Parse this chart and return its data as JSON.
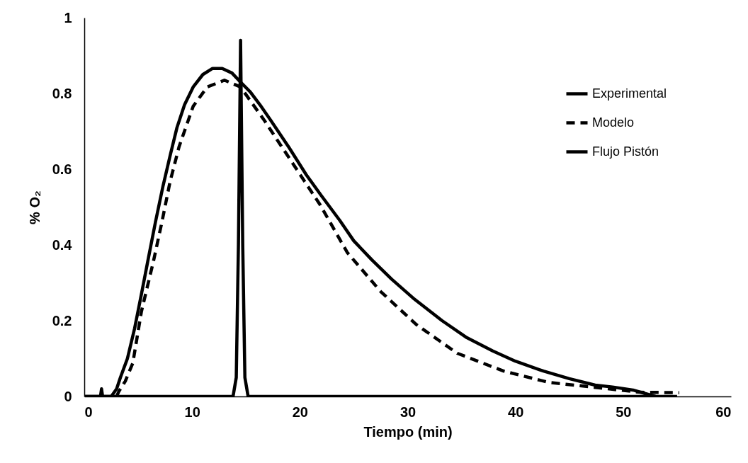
{
  "chart_data": {
    "type": "line",
    "xlabel": "Tiempo (min)",
    "ylabel": "% O₂",
    "xlim": [
      0,
      60
    ],
    "ylim": [
      0,
      1
    ],
    "xticks": [
      0,
      10,
      20,
      30,
      40,
      50,
      60
    ],
    "yticks": [
      0,
      0.2,
      0.4,
      0.6,
      0.8,
      1
    ],
    "grid": false,
    "legend": "top right",
    "marker": "none",
    "series": [
      {
        "name": "Experimental",
        "color": "#000000",
        "line_style": "solid",
        "x": [
          0,
          1.5,
          1.6,
          1.7,
          2.5,
          3,
          3.35,
          4,
          4.67,
          5.3,
          5.98,
          6.6,
          7.3,
          8,
          8.6,
          9.3,
          10.1,
          11,
          11.9,
          12.8,
          13.7,
          14.5,
          15.4,
          16.3,
          17.3,
          19,
          20.6,
          22,
          23.7,
          25,
          26.7,
          28.5,
          30.5,
          33.2,
          35.5,
          37.9,
          40,
          42.6,
          45,
          47.4,
          49,
          50.9,
          52,
          53
        ],
        "values": [
          0,
          0,
          0.02,
          0,
          0,
          0.02,
          0.05,
          0.1,
          0.18,
          0.27,
          0.37,
          0.46,
          0.555,
          0.64,
          0.71,
          0.77,
          0.817,
          0.85,
          0.866,
          0.866,
          0.854,
          0.83,
          0.804,
          0.77,
          0.729,
          0.657,
          0.585,
          0.53,
          0.465,
          0.411,
          0.36,
          0.31,
          0.26,
          0.2,
          0.155,
          0.12,
          0.093,
          0.067,
          0.047,
          0.03,
          0.025,
          0.017,
          0.008,
          0
        ]
      },
      {
        "name": "Modelo",
        "color": "#000000",
        "line_style": "dashed",
        "x": [
          3,
          3.2,
          3.8,
          4.5,
          5.3,
          6.4,
          7.2,
          7.95,
          8.8,
          10.1,
          11.4,
          13,
          14.5,
          16.7,
          19.3,
          21.9,
          24.4,
          27.5,
          30.8,
          34.6,
          38.9,
          43.1,
          47.4,
          51.6,
          55.2
        ],
        "values": [
          0,
          0.013,
          0.04,
          0.088,
          0.224,
          0.355,
          0.46,
          0.566,
          0.66,
          0.766,
          0.817,
          0.835,
          0.817,
          0.729,
          0.617,
          0.505,
          0.38,
          0.277,
          0.19,
          0.114,
          0.067,
          0.037,
          0.024,
          0.011,
          0.01
        ]
      },
      {
        "name": "Flujo Pistón",
        "color": "#000000",
        "line_style": "solid",
        "x": [
          0,
          13.8,
          14.1,
          14.3,
          14.5,
          14.7,
          14.9,
          15.2,
          55
        ],
        "values": [
          0,
          0,
          0.05,
          0.4,
          0.94,
          0.4,
          0.05,
          0,
          0
        ]
      }
    ]
  }
}
